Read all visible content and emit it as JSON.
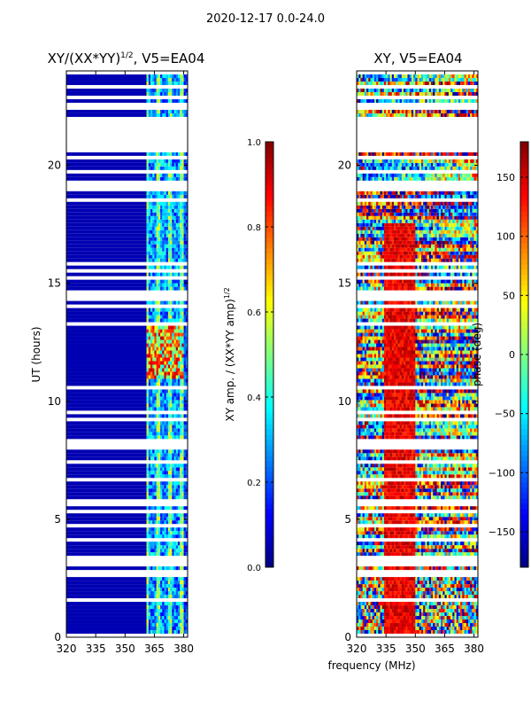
{
  "figure": {
    "suptitle": "2020-12-17 0.0-24.0",
    "shared_xlabel": "frequency (MHz)"
  },
  "chart_data": [
    {
      "type": "heatmap",
      "title": "XY/(XX*YY)^1/2, V5=EA04",
      "title_main": "XY/(XX*YY)",
      "title_exp": "1/2",
      "title_tail": ", V5=EA04",
      "xlabel": "frequency (MHz)",
      "ylabel": "UT (hours)",
      "xlim": [
        320,
        382
      ],
      "ylim": [
        0,
        24
      ],
      "xticks": [
        320,
        335,
        350,
        365,
        380
      ],
      "yticks": [
        0,
        5,
        10,
        15,
        20
      ],
      "colormap": "jet",
      "colorbar": {
        "label": "XY amp. / (XX*YY amp)^1/2",
        "label_main": "XY amp. / (XX*YY amp)",
        "label_exp": "1/2",
        "range": [
          0.0,
          1.0
        ],
        "ticks": [
          0.0,
          0.2,
          0.4,
          0.6,
          0.8,
          1.0
        ],
        "tick_labels": [
          "0.0",
          "0.2",
          "0.4",
          "0.6",
          "0.8",
          "1.0"
        ]
      },
      "notes": "Low amplitude (~0.05) below ~360 MHz; bands of 0.2-0.6 (and up to 0.9 near 11-13 h) at ~361-380 MHz; many blank (flagged) time rows."
    },
    {
      "type": "heatmap",
      "title": "XY, V5=EA04",
      "xlabel": "frequency (MHz)",
      "ylabel": "",
      "xlim": [
        320,
        382
      ],
      "ylim": [
        0,
        24
      ],
      "xticks": [
        320,
        335,
        350,
        365,
        380
      ],
      "yticks": [
        0,
        5,
        10,
        15,
        20
      ],
      "colormap": "jet",
      "colorbar": {
        "label": "phase (deg)",
        "range": [
          -180,
          180
        ],
        "ticks": [
          -150,
          -100,
          -50,
          0,
          50,
          100,
          150
        ],
        "tick_labels": [
          "−150",
          "−100",
          "−50",
          "0",
          "50",
          "100",
          "150"
        ]
      },
      "notes": "Noisy phase; persistent high phase (~150 deg) band near 335-350 MHz; many blank (flagged) time rows."
    }
  ]
}
